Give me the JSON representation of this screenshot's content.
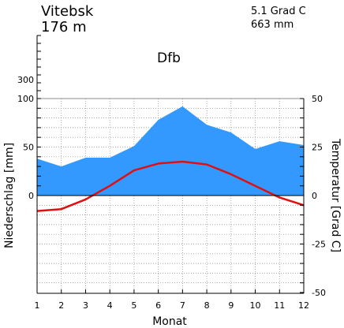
{
  "header": {
    "station": "Vitebsk",
    "elevation": "176  m",
    "mean_temp": "5.1 Grad C",
    "annual_precip": "663 mm",
    "climate_class": "Dfb"
  },
  "chart_data": {
    "type": "area",
    "xlabel": "Monat",
    "ylabel_left": "Niederschlag [mm]",
    "ylabel_right": "Temperatur [Grad C]",
    "x": [
      1,
      2,
      3,
      4,
      5,
      6,
      7,
      8,
      9,
      10,
      11,
      12
    ],
    "x_tick_labels": [
      "1",
      "2",
      "3",
      "4",
      "5",
      "6",
      "7",
      "8",
      "9",
      "10",
      "11",
      "12"
    ],
    "left_ticks": [
      0,
      50,
      100,
      300
    ],
    "left_tick_labels": [
      "0",
      "50",
      "100",
      "300"
    ],
    "right_ticks": [
      50,
      25,
      0,
      -25,
      -50
    ],
    "right_tick_labels": [
      "50",
      "25",
      "0",
      "-25",
      "-50"
    ],
    "temp_range": [
      -50,
      50
    ],
    "grid": true,
    "series": [
      {
        "kind": "precipitation",
        "unit": "mm",
        "color": "#3399ff",
        "values": [
          38,
          30,
          39,
          39,
          51,
          78,
          92,
          73,
          65,
          48,
          56,
          52
        ]
      },
      {
        "kind": "temperature",
        "unit": "Grad C",
        "color": "#e01010",
        "values": [
          -8,
          -7,
          -2,
          5,
          13,
          16.5,
          17.5,
          16,
          11,
          5,
          -1,
          -5
        ]
      }
    ]
  }
}
